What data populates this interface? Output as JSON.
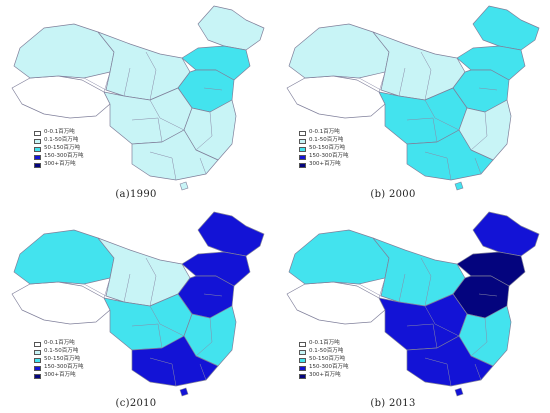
{
  "legend": {
    "items": [
      {
        "label": "0-0.1百万吨",
        "color": "#ffffff"
      },
      {
        "label": "0.1-50百万吨",
        "color": "#c8f4f6"
      },
      {
        "label": "50-150百万吨",
        "color": "#43e3ee"
      },
      {
        "label": "150-300百万吨",
        "color": "#1313d6"
      },
      {
        "label": "300+百万吨",
        "color": "#04047e"
      }
    ]
  },
  "maps": [
    {
      "caption": "(a)1990",
      "levels": {
        "tibet": 0,
        "xinjiang": 1,
        "northwest": 1,
        "heilongjiang": 1,
        "northeast": 2,
        "north": 2,
        "south": 1,
        "southeast": 1,
        "central": 1
      }
    },
    {
      "caption": "(b) 2000",
      "levels": {
        "tibet": 0,
        "xinjiang": 1,
        "northwest": 1,
        "heilongjiang": 2,
        "northeast": 2,
        "north": 2,
        "south": 2,
        "southeast": 1,
        "central": 2
      }
    },
    {
      "caption": "(c)2010",
      "levels": {
        "tibet": 0,
        "xinjiang": 2,
        "northwest": 1,
        "heilongjiang": 3,
        "northeast": 3,
        "north": 3,
        "south": 3,
        "southeast": 2,
        "central": 2
      }
    },
    {
      "caption": "(b) 2013",
      "levels": {
        "tibet": 0,
        "xinjiang": 2,
        "northwest": 2,
        "heilongjiang": 3,
        "northeast": 4,
        "north": 4,
        "south": 3,
        "southeast": 2,
        "central": 3
      }
    }
  ]
}
